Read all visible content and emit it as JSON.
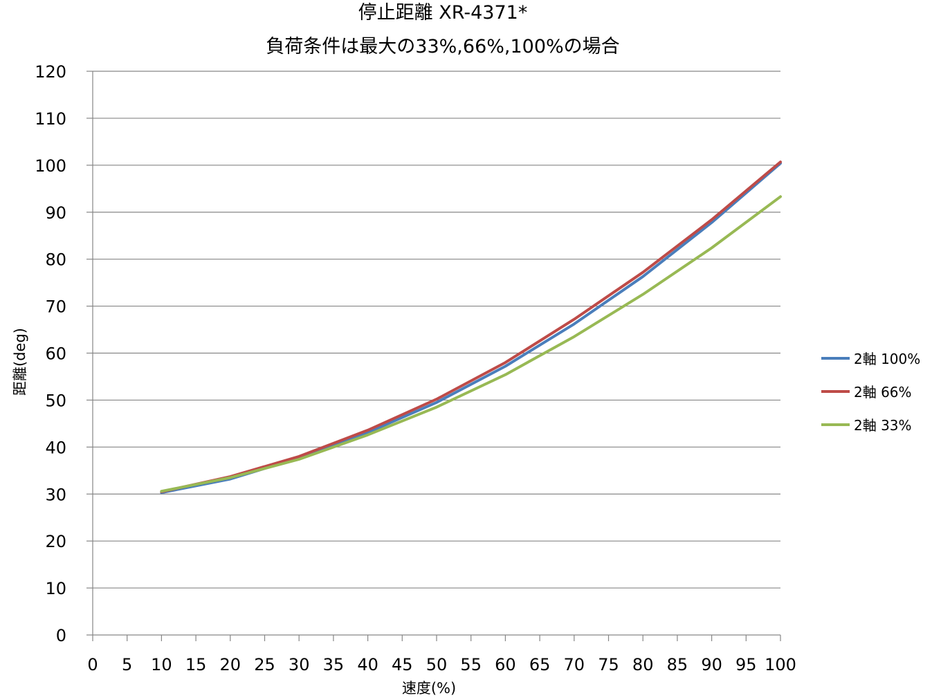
{
  "chart_data": {
    "type": "line",
    "title": "停止距離 XR-4371*",
    "subtitle": "負荷条件は最大の33%,66%,100%の場合",
    "xlabel": "速度(%)",
    "ylabel": "距離(deg)",
    "xlim": [
      0,
      100
    ],
    "ylim": [
      0,
      120
    ],
    "x_ticks": [
      "0",
      "5",
      "10",
      "15",
      "20",
      "25",
      "30",
      "35",
      "40",
      "45",
      "50",
      "55",
      "60",
      "65",
      "70",
      "75",
      "80",
      "85",
      "90",
      "95",
      "100"
    ],
    "y_ticks": [
      "0",
      "10",
      "20",
      "30",
      "40",
      "50",
      "60",
      "70",
      "80",
      "90",
      "100",
      "110",
      "120"
    ],
    "grid": "horizontal",
    "legend_position": "right",
    "x": [
      10,
      20,
      30,
      40,
      50,
      60,
      70,
      80,
      90,
      100
    ],
    "series": [
      {
        "name": "2軸 100%",
        "color": "#4a7ebb",
        "values": [
          30.3,
          33.2,
          37.7,
          43.1,
          49.5,
          57.2,
          66.2,
          76.3,
          87.8,
          100.4
        ]
      },
      {
        "name": "2軸 66%",
        "color": "#be4b48",
        "values": [
          30.5,
          33.7,
          38.0,
          43.6,
          50.2,
          58.0,
          67.2,
          77.2,
          88.4,
          100.7
        ]
      },
      {
        "name": "2軸 33%",
        "color": "#98b954",
        "values": [
          30.6,
          33.5,
          37.4,
          42.6,
          48.5,
          55.4,
          63.5,
          72.5,
          82.4,
          93.3
        ]
      }
    ]
  }
}
